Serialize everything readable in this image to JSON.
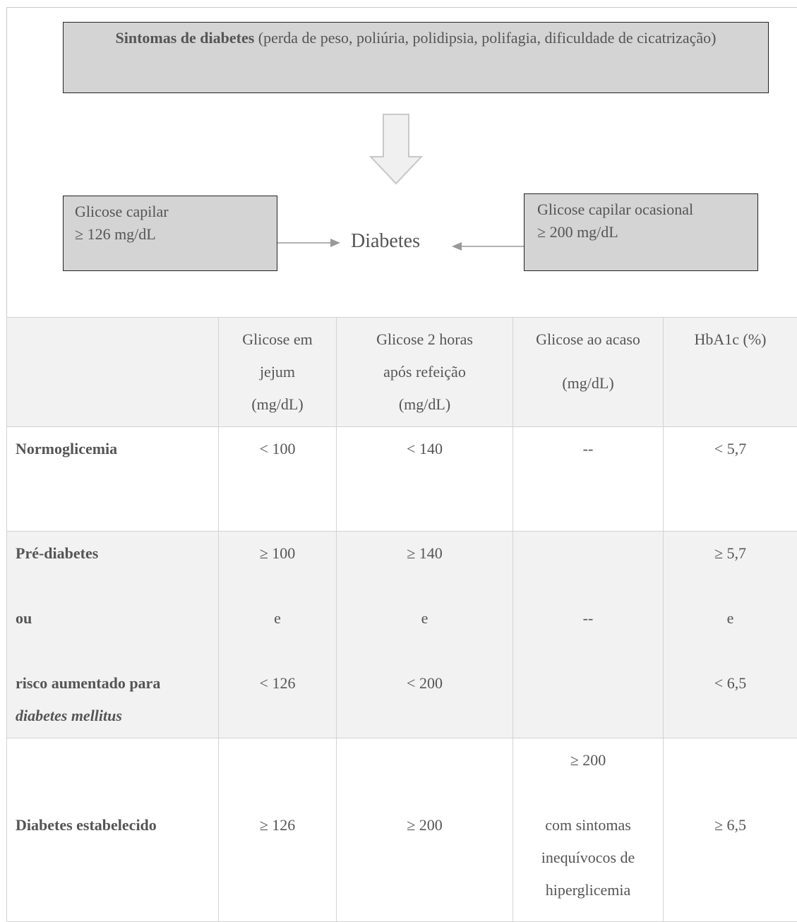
{
  "flow": {
    "symptoms_bold": "Sintomas de diabetes",
    "symptoms_rest": " (perda de peso, poliúria, polidipsia, polifagia, dificuldade de cicatrização)",
    "left_box": {
      "line1": "Glicose capilar",
      "line2": "≥ 126 mg/dL"
    },
    "center_label": "Diabetes",
    "right_box": {
      "line1": "Glicose capilar ocasional",
      "line2": "≥ 200 mg/dL"
    },
    "colors": {
      "box_fill": "#d4d4d4",
      "arrow_fill": "#f0f0f0",
      "arrow_stroke": "#c8c8c8",
      "connector": "#999999"
    }
  },
  "table": {
    "headers": {
      "col1": "",
      "col2": [
        "Glicose em",
        "jejum",
        "(mg/dL)"
      ],
      "col3": [
        "Glicose 2 horas",
        "após refeição",
        "(mg/dL)"
      ],
      "col4": [
        "Glicose ao acaso",
        "(mg/dL)"
      ],
      "col5": "HbA1c (%)"
    },
    "rows": [
      {
        "label": "Normoglicemia",
        "jejum": "< 100",
        "pos": "< 140",
        "acaso": "--",
        "hba1c": "< 5,7"
      },
      {
        "label_lines": [
          "Pré-diabetes",
          "ou",
          "risco aumentado para"
        ],
        "label_italic": "diabetes mellitus",
        "jejum": [
          "≥ 100",
          "e",
          "< 126"
        ],
        "pos": [
          "≥ 140",
          "e",
          "< 200"
        ],
        "acaso": "--",
        "hba1c": [
          "≥ 5,7",
          "e",
          "< 6,5"
        ]
      },
      {
        "label": "Diabetes estabelecido",
        "jejum": "≥ 126",
        "pos": "≥ 200",
        "acaso": [
          "≥ 200",
          "com sintomas",
          "inequívocos de",
          "hiperglicemia"
        ],
        "hba1c": "≥ 6,5"
      }
    ]
  }
}
